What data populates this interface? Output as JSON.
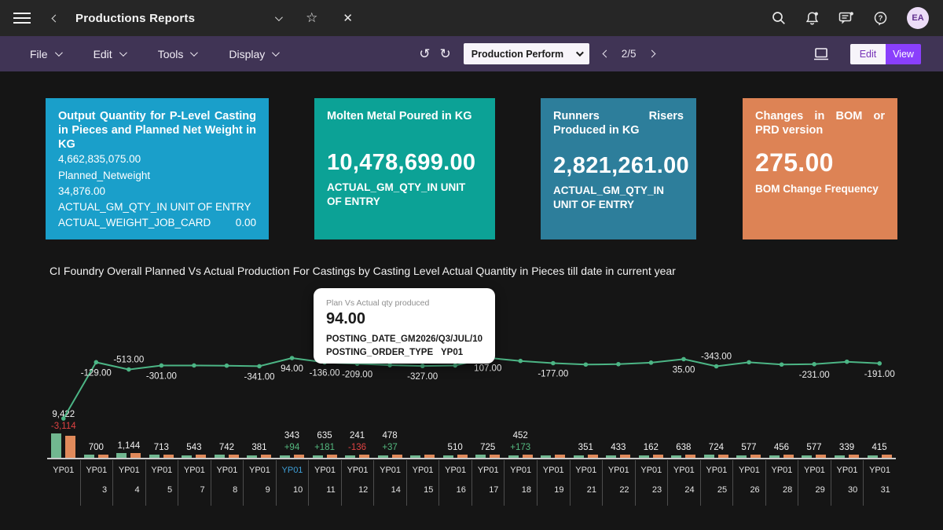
{
  "titlebar": {
    "title": "Productions Reports",
    "avatar_initials": "EA"
  },
  "menubar": {
    "menus": [
      "File",
      "Edit",
      "Tools",
      "Display"
    ],
    "page_dropdown_value": "Production Perform",
    "page_indicator": "2/5",
    "edit_label": "Edit",
    "view_label": "View"
  },
  "kpi_cards": [
    {
      "title": "Output Quantity for P-Level Casting in Pieces and Planned Net Weight in KG",
      "lines": [
        "4,662,835,075.00",
        "Planned_Netweight",
        "34,876.00",
        "ACTUAL_GM_QTY_IN UNIT OF ENTRY"
      ],
      "last_line_label": "ACTUAL_WEIGHT_JOB_CARD",
      "last_line_value": "0.00",
      "color": "#1a9fca"
    },
    {
      "title": "Molten Metal Poured in KG",
      "value": "10,478,699.00",
      "caption": "ACTUAL_GM_QTY_IN UNIT OF ENTRY",
      "color": "#0ca296"
    },
    {
      "title": "Runners Risers Produced in KG",
      "value": "2,821,261.00",
      "caption": "ACTUAL_GM_QTY_IN UNIT OF ENTRY",
      "color": "#2d7e9b"
    },
    {
      "title": "Changes in BOM or PRD version",
      "value": "275.00",
      "caption": "BOM Change Frequency",
      "color": "#dd8355"
    }
  ],
  "chart_title": "CI Foundry Overall Planned Vs Actual Production For Castings by Casting Level Actual Quantity in Pieces till date in current year",
  "tooltip": {
    "series": "Plan Vs Actual qty produced",
    "value": "94.00",
    "rows": [
      {
        "label": "POSTING_DATE_GM",
        "value": "2026/Q3/JUL/10"
      },
      {
        "label": "POSTING_ORDER_TYPE",
        "value": "YP01"
      }
    ]
  },
  "chart_data": {
    "type": "combo-bar-line",
    "line_series_name": "Plan Vs Actual qty produced",
    "order_type": "YP01",
    "highlighted_index": 7,
    "colors": {
      "bar_actual": "#71b790",
      "bar_plan": "#e08a5b",
      "line": "#4cb585",
      "positive": "#54b97f",
      "negative": "#e04343",
      "x_highlight": "#3fa0d9"
    },
    "categories": [
      {
        "day": "",
        "bar_label": "9,422",
        "variance_label": "-3,114",
        "variance_color": "negative",
        "line_value": -3114,
        "line_label": null,
        "line_label_pos": null
      },
      {
        "day": "3",
        "bar_label": "700",
        "variance_label": null,
        "line_value": -129,
        "line_label": "-129.00",
        "line_label_pos": "below"
      },
      {
        "day": "4",
        "bar_label": "1,144",
        "variance_label": null,
        "line_value": -513,
        "line_label": "-513.00",
        "line_label_pos": "above"
      },
      {
        "day": "5",
        "bar_label": "713",
        "variance_label": null,
        "line_value": -301,
        "line_label": "-301.00",
        "line_label_pos": "below"
      },
      {
        "day": "7",
        "bar_label": "543",
        "variance_label": null,
        "line_value": -300,
        "line_label": null,
        "line_label_pos": null
      },
      {
        "day": "8",
        "bar_label": "742",
        "variance_label": null,
        "line_value": -310,
        "line_label": null,
        "line_label_pos": null
      },
      {
        "day": "9",
        "bar_label": "381",
        "variance_label": null,
        "line_value": -341,
        "line_label": "-341.00",
        "line_label_pos": "below"
      },
      {
        "day": "10",
        "bar_label": "343",
        "variance_label": "+94",
        "variance_color": "positive",
        "line_value": 94,
        "line_label": "94.00",
        "line_label_pos": "below"
      },
      {
        "day": "11",
        "bar_label": "635",
        "variance_label": "+181",
        "variance_color": "positive",
        "line_value": -136,
        "line_label": "-136.00",
        "line_label_pos": "below"
      },
      {
        "day": "12",
        "bar_label": "241",
        "variance_label": "-136",
        "variance_color": "negative",
        "line_value": -209,
        "line_label": "-209.00",
        "line_label_pos": "below"
      },
      {
        "day": "14",
        "bar_label": "478",
        "variance_label": "+37",
        "variance_color": "positive",
        "line_value": -280,
        "line_label": null,
        "line_label_pos": null
      },
      {
        "day": "15",
        "bar_label": null,
        "variance_label": null,
        "line_value": -327,
        "line_label": "-327.00",
        "line_label_pos": "below"
      },
      {
        "day": "16",
        "bar_label": "510",
        "variance_label": null,
        "line_value": -300,
        "line_label": null,
        "line_label_pos": null
      },
      {
        "day": "17",
        "bar_label": "725",
        "variance_label": null,
        "line_value": 107,
        "line_label": "107.00",
        "line_label_pos": "below"
      },
      {
        "day": "18",
        "bar_label": "452",
        "variance_label": "+173",
        "variance_color": "positive",
        "line_value": -60,
        "line_label": null,
        "line_label_pos": null
      },
      {
        "day": "19",
        "bar_label": null,
        "variance_label": null,
        "line_value": -177,
        "line_label": "-177.00",
        "line_label_pos": "below"
      },
      {
        "day": "21",
        "bar_label": "351",
        "variance_label": null,
        "line_value": -250,
        "line_label": null,
        "line_label_pos": null
      },
      {
        "day": "22",
        "bar_label": "433",
        "variance_label": null,
        "line_value": -230,
        "line_label": null,
        "line_label_pos": null
      },
      {
        "day": "23",
        "bar_label": "162",
        "variance_label": null,
        "line_value": -150,
        "line_label": null,
        "line_label_pos": null
      },
      {
        "day": "24",
        "bar_label": "638",
        "variance_label": null,
        "line_value": 35,
        "line_label": "35.00",
        "line_label_pos": "below"
      },
      {
        "day": "25",
        "bar_label": "724",
        "variance_label": null,
        "line_value": -343,
        "line_label": "-343.00",
        "line_label_pos": "above"
      },
      {
        "day": "26",
        "bar_label": "577",
        "variance_label": null,
        "line_value": -130,
        "line_label": null,
        "line_label_pos": null
      },
      {
        "day": "28",
        "bar_label": "456",
        "variance_label": null,
        "line_value": -250,
        "line_label": null,
        "line_label_pos": null
      },
      {
        "day": "29",
        "bar_label": "577",
        "variance_label": null,
        "line_value": -231,
        "line_label": "-231.00",
        "line_label_pos": "below"
      },
      {
        "day": "30",
        "bar_label": "339",
        "variance_label": null,
        "line_value": -100,
        "line_label": null,
        "line_label_pos": null
      },
      {
        "day": "31",
        "bar_label": "415",
        "variance_label": null,
        "line_value": -191,
        "line_label": "-191.00",
        "line_label_pos": "below"
      }
    ]
  }
}
